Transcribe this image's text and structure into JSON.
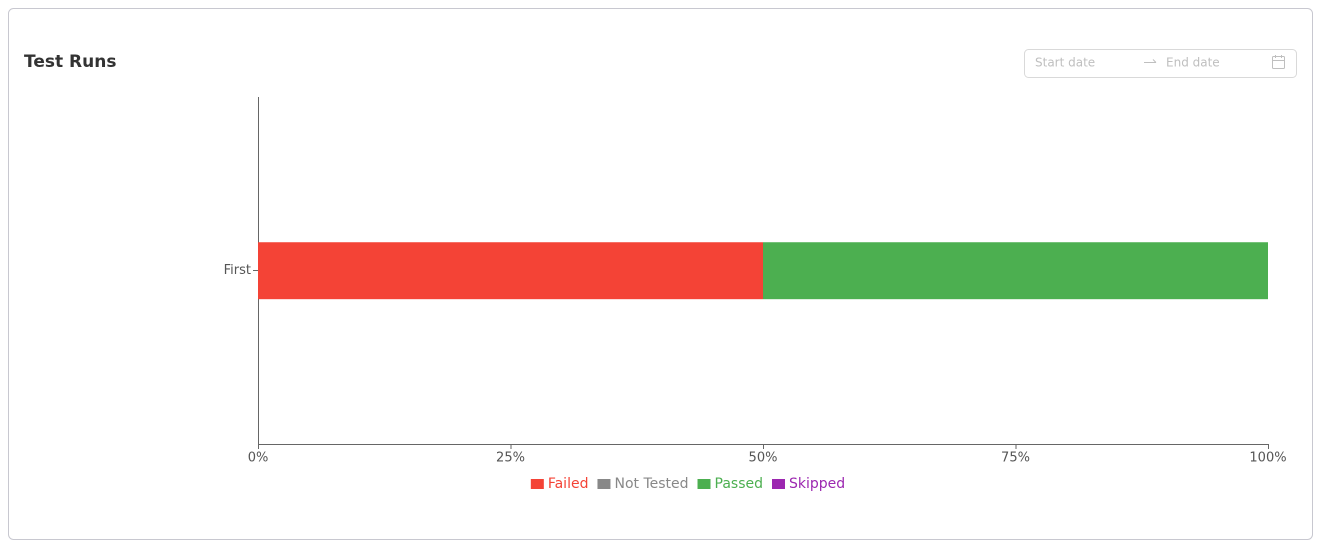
{
  "card": {
    "title": "Test Runs"
  },
  "date_range": {
    "start_placeholder": "Start date",
    "end_placeholder": "End date"
  },
  "chart_data": {
    "type": "stacked-bar-horizontal",
    "categories": [
      "First"
    ],
    "series": [
      {
        "name": "Failed",
        "color": "#f44336",
        "values": [
          50
        ]
      },
      {
        "name": "Not Tested",
        "color": "#888888",
        "values": [
          0
        ]
      },
      {
        "name": "Passed",
        "color": "#4caf50",
        "values": [
          50
        ]
      },
      {
        "name": "Skipped",
        "color": "#9c27b0",
        "values": [
          0
        ]
      }
    ],
    "xlim": [
      0,
      100
    ],
    "xticks": [
      {
        "value": 0,
        "label": "0%"
      },
      {
        "value": 25,
        "label": "25%"
      },
      {
        "value": 50,
        "label": "50%"
      },
      {
        "value": 75,
        "label": "75%"
      },
      {
        "value": 100,
        "label": "100%"
      }
    ],
    "legend": "bottom"
  }
}
